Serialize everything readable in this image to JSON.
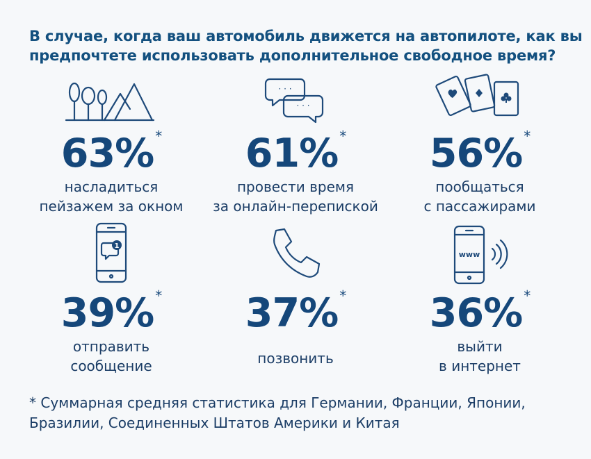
{
  "title": {
    "line1": "В случае, когда ваш автомобиль движется на автопилоте, как вы",
    "line2": "предпочтете использовать дополнительное свободное время?"
  },
  "stats": [
    {
      "percent": "63%",
      "star": "*",
      "line1": "насладиться",
      "line2": "пейзажем за окном",
      "icon": "landscape-icon"
    },
    {
      "percent": "61%",
      "star": "*",
      "line1": "провести время",
      "line2": "за онлайн-переписко й",
      "icon": "chat-bubbles-icon"
    },
    {
      "percent": "56%",
      "star": "*",
      "line1": "пообщаться",
      "line2": "с пассажирами",
      "icon": "playing-cards-icon"
    },
    {
      "percent": "39%",
      "star": "*",
      "line1": "отправить",
      "line2": "сообщение",
      "icon": "smartphone-message-icon"
    },
    {
      "percent": "37%",
      "star": "*",
      "line1": "позвонить",
      "line2": "",
      "icon": "phone-handset-icon"
    },
    {
      "percent": "36%",
      "star": "*",
      "line1": "выйти",
      "line2": "в интернет",
      "icon": "smartphone-www-icon"
    }
  ],
  "phone_www_text": "www",
  "chat_dots": "· · ·",
  "message_badge": "1",
  "footnote": {
    "line1": "* Суммарная средняя статистика для Германии, Франции, Японии,",
    "line2": "Бразилии, Соединенных Штатов Америки и Китая"
  },
  "colors": {
    "accent": "#13507f",
    "text": "#1b3d66",
    "icon": "#1e4a7a",
    "background": "#f6f8fa"
  }
}
